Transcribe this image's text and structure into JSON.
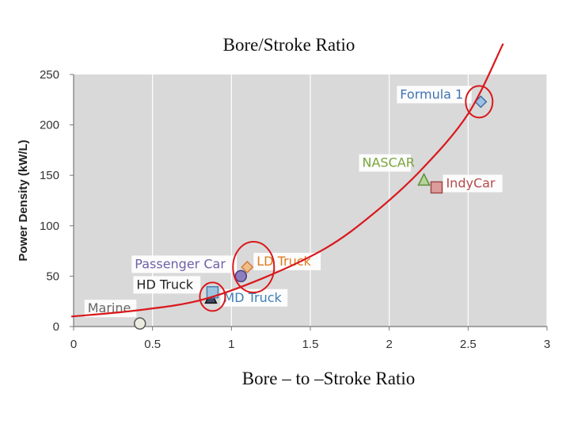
{
  "chart_data": {
    "type": "scatter",
    "title": "Bore/Stroke Ratio",
    "xlabel": "Bore – to –Stroke Ratio",
    "ylabel": "Power Density (kW/L)",
    "xlim": [
      0,
      3
    ],
    "ylim": [
      0,
      250
    ],
    "x_ticks": [
      0,
      0.5,
      1,
      1.5,
      2,
      2.5,
      3
    ],
    "x_tick_labels": [
      "0",
      "0.5",
      "1",
      "1.5",
      "2",
      "2.5",
      "3"
    ],
    "y_ticks": [
      0,
      50,
      100,
      150,
      200,
      250
    ],
    "y_tick_labels": [
      "0",
      "50",
      "100",
      "150",
      "200",
      "250"
    ],
    "grid": "vertical",
    "background": "#d9d9d9",
    "points": [
      {
        "label": "Marine",
        "x": 0.42,
        "y": 3,
        "marker": "circle",
        "fill": "#ebebe0",
        "stroke": "#555555",
        "label_color": "#666666"
      },
      {
        "label": "HD Truck",
        "x": 0.87,
        "y": 28,
        "marker": "triangle",
        "fill": "#3d4a66",
        "stroke": "#111111",
        "label_color": "#222222"
      },
      {
        "label": "MD Truck",
        "x": 0.88,
        "y": 34,
        "marker": "square",
        "fill": "#9fc4e0",
        "stroke": "#4a7fb0",
        "label_color": "#3f7fb8"
      },
      {
        "label": "Passenger Car",
        "x": 1.06,
        "y": 50,
        "marker": "circle",
        "fill": "#8d7fbf",
        "stroke": "#4a3d80",
        "label_color": "#7060a8"
      },
      {
        "label": "LD Truck",
        "x": 1.1,
        "y": 59,
        "marker": "diamond",
        "fill": "#f3bd8a",
        "stroke": "#d0803a",
        "label_color": "#e07b20"
      },
      {
        "label": "NASCAR",
        "x": 2.22,
        "y": 145,
        "marker": "triangle",
        "fill": "#b5d69a",
        "stroke": "#5f8c3a",
        "label_color": "#7aa33c"
      },
      {
        "label": "IndyCar",
        "x": 2.3,
        "y": 138,
        "marker": "square",
        "fill": "#dd9b9b",
        "stroke": "#a04848",
        "label_color": "#b54a4a"
      },
      {
        "label": "Formula 1",
        "x": 2.58,
        "y": 223,
        "marker": "diamond",
        "fill": "#9cc1e3",
        "stroke": "#3f6ea0",
        "label_color": "#3f73b0"
      }
    ],
    "annotations": {
      "color": "#d9191d",
      "trend_curve": [
        [
          -0.01,
          10
        ],
        [
          0.4,
          16
        ],
        [
          0.8,
          26
        ],
        [
          1.2,
          48
        ],
        [
          1.6,
          78
        ],
        [
          1.9,
          112
        ],
        [
          2.2,
          155
        ],
        [
          2.5,
          211
        ],
        [
          2.72,
          280
        ]
      ],
      "circled_points": [
        "HD Truck",
        "LD Truck",
        "Formula 1"
      ]
    }
  }
}
